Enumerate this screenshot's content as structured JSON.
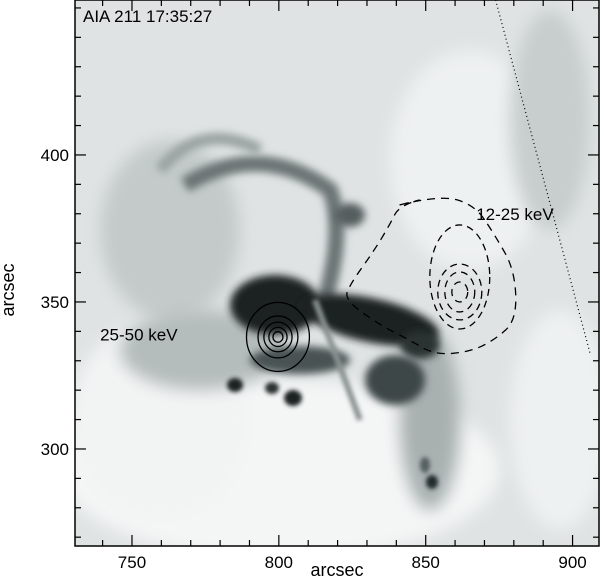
{
  "chart_data": {
    "type": "image-with-contours",
    "title": "AIA 211 17:35:27",
    "xlabel": "arcsec",
    "ylabel": "arcsec",
    "xlim": [
      730.6,
      909
    ],
    "ylim": [
      267,
      452.7
    ],
    "x_major_ticks": [
      750,
      800,
      850,
      900
    ],
    "y_major_ticks": [
      300,
      350,
      400
    ],
    "minor_tick_step": 10,
    "colormap": "inverted grayscale",
    "annotations": [
      {
        "text": "12-25 keV",
        "x": 874,
        "y": 380
      },
      {
        "text": "25-50 keV",
        "x": 748,
        "y": 339
      }
    ],
    "contours": [
      {
        "label": "25-50 keV",
        "style": "solid",
        "center": [
          799.7,
          338.1
        ],
        "radii": [
          10.2,
          6.8,
          4.8,
          3.1,
          1.7
        ]
      },
      {
        "label": "12-25 keV",
        "style": "dashed",
        "outer": [
          [
            841.1,
            383.0
          ],
          [
            854.8,
            386.4
          ],
          [
            866.7,
            383.0
          ],
          [
            873.5,
            372.8
          ],
          [
            880.3,
            360.9
          ],
          [
            881.0,
            343.9
          ],
          [
            873.5,
            337.1
          ],
          [
            865.0,
            333.0
          ],
          [
            853.0,
            332.0
          ],
          [
            844.5,
            337.1
          ],
          [
            834.3,
            342.2
          ],
          [
            822.4,
            350.7
          ],
          [
            824.1,
            355.8
          ],
          [
            832.6,
            367.7
          ],
          [
            837.7,
            376.2
          ]
        ],
        "inner_center": [
          861.6,
          353.4
        ],
        "inner_radii": [
          [
            10.2,
            17.7
          ],
          [
            7.5,
            9.5
          ],
          [
            5.1,
            6.8
          ],
          [
            2.7,
            3.4
          ]
        ]
      }
    ],
    "limb_line": {
      "style": "dotted",
      "from": [
        873.8,
        452.7
      ],
      "to": [
        906.1,
        332.0
      ]
    }
  }
}
